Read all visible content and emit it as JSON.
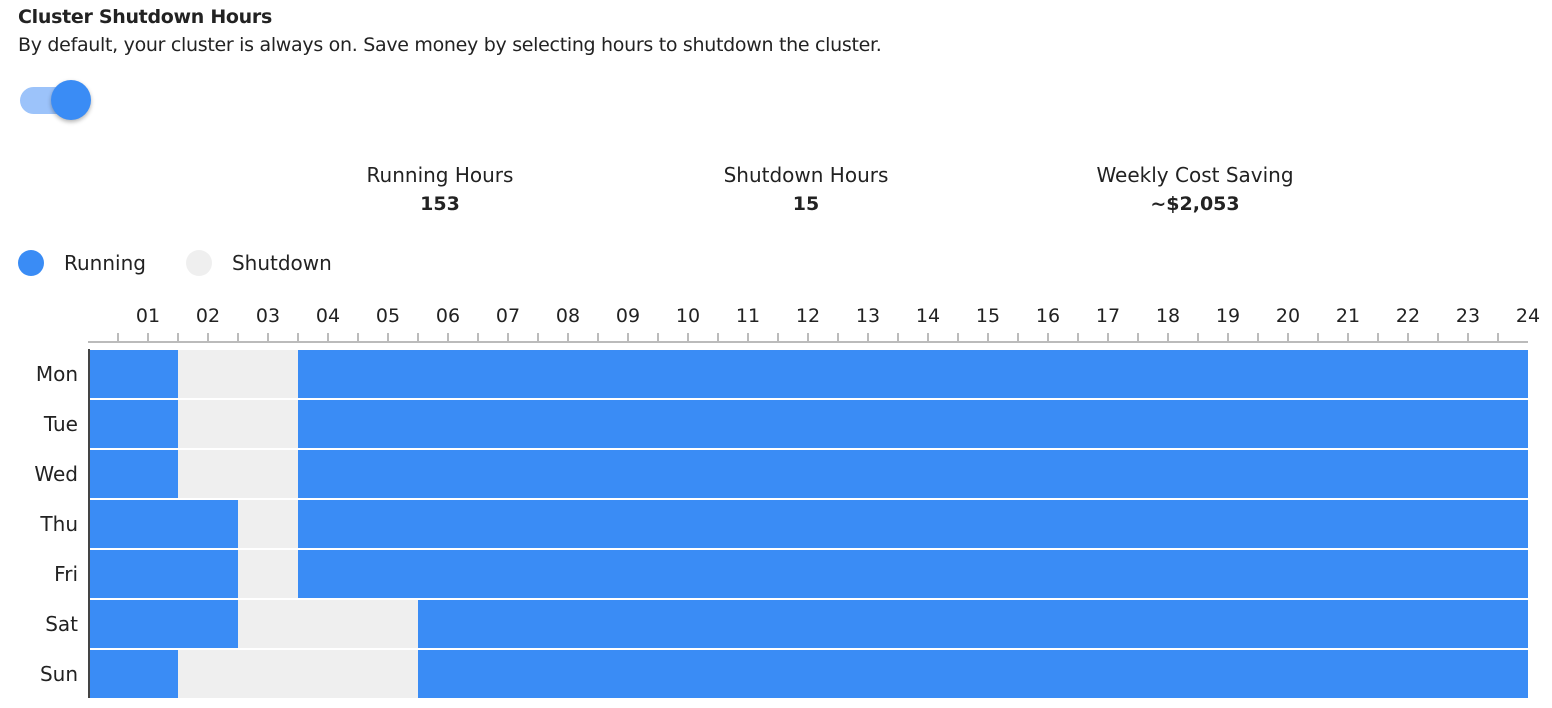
{
  "header": {
    "title": "Cluster Shutdown Hours",
    "subtitle": "By default, your cluster is always on. Save money by selecting hours to shutdown the cluster."
  },
  "toggle": {
    "enabled": true
  },
  "stats": [
    {
      "label": "Running Hours",
      "value": "153"
    },
    {
      "label": "Shutdown Hours",
      "value": "15"
    },
    {
      "label": "Weekly Cost Saving",
      "value": "~$2,053"
    }
  ],
  "legend": [
    {
      "label": "Running",
      "color": "#3a8cf5"
    },
    {
      "label": "Shutdown",
      "color": "#efefef"
    }
  ],
  "hours": [
    "01",
    "02",
    "03",
    "04",
    "05",
    "06",
    "07",
    "08",
    "09",
    "10",
    "11",
    "12",
    "13",
    "14",
    "15",
    "16",
    "17",
    "18",
    "19",
    "20",
    "21",
    "22",
    "23",
    "24"
  ],
  "schedule": [
    {
      "day": "Mon",
      "shutdown": [
        "02",
        "03"
      ]
    },
    {
      "day": "Tue",
      "shutdown": [
        "02",
        "03"
      ]
    },
    {
      "day": "Wed",
      "shutdown": [
        "02",
        "03"
      ]
    },
    {
      "day": "Thu",
      "shutdown": [
        "03"
      ]
    },
    {
      "day": "Fri",
      "shutdown": [
        "03"
      ]
    },
    {
      "day": "Sat",
      "shutdown": [
        "03",
        "04",
        "05"
      ]
    },
    {
      "day": "Sun",
      "shutdown": [
        "02",
        "03",
        "04",
        "05"
      ]
    }
  ]
}
